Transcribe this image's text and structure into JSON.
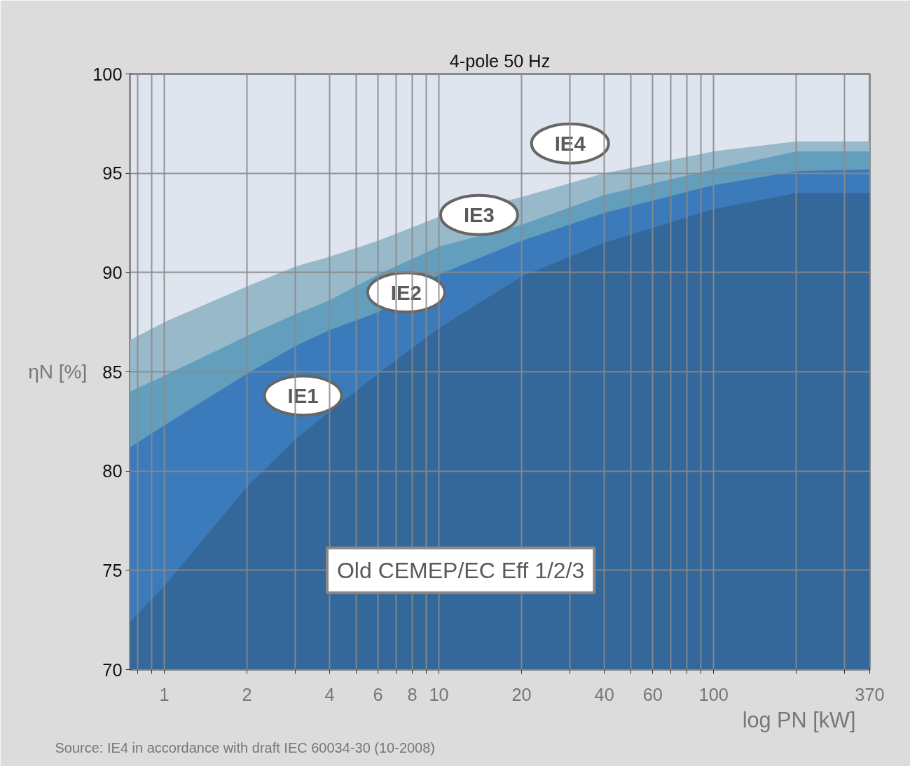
{
  "chart_data": {
    "type": "area",
    "title": "4-pole 50 Hz",
    "xlabel": "log PN [kW]",
    "ylabel": "ηN [%]",
    "x": [
      0.75,
      1,
      2,
      3,
      4,
      6,
      10,
      20,
      40,
      100,
      200,
      370
    ],
    "series": [
      {
        "name": "IE1",
        "color": "#34679a",
        "values": [
          72.4,
          74.2,
          79.2,
          81.6,
          83.0,
          84.9,
          87.2,
          89.8,
          91.5,
          93.2,
          94.0,
          94.0
        ]
      },
      {
        "name": "IE2",
        "color": "#3c7bbb",
        "values": [
          81.2,
          82.3,
          84.9,
          86.3,
          87.1,
          88.0,
          89.9,
          91.6,
          93.0,
          94.4,
          95.1,
          95.2
        ]
      },
      {
        "name": "IE3",
        "color": "#639ebd",
        "values": [
          84.0,
          84.8,
          86.8,
          87.9,
          88.6,
          89.9,
          91.3,
          92.4,
          93.9,
          95.2,
          96.1,
          96.1
        ]
      },
      {
        "name": "IE4",
        "color": "#98b9ca",
        "values": [
          86.6,
          87.5,
          89.3,
          90.3,
          90.8,
          91.6,
          92.8,
          93.8,
          95.0,
          96.1,
          96.6,
          96.6
        ]
      }
    ],
    "log": "x",
    "xlim": [
      0.75,
      370
    ],
    "ylim": [
      70,
      100
    ],
    "xticks": [
      {
        "value": 0.8,
        "label": null
      },
      {
        "value": 0.9,
        "label": null
      },
      1,
      2,
      {
        "value": 3,
        "label": null
      },
      4,
      {
        "value": 5,
        "label": null
      },
      6,
      {
        "value": 7,
        "label": null
      },
      8,
      {
        "value": 9,
        "label": null
      },
      10,
      20,
      {
        "value": 30,
        "label": null
      },
      40,
      {
        "value": 50,
        "label": null
      },
      60,
      {
        "value": 70,
        "label": null
      },
      {
        "value": 80,
        "label": null
      },
      {
        "value": 90,
        "label": null
      },
      100,
      {
        "value": 200,
        "label": null
      },
      {
        "value": 300,
        "label": null
      },
      370
    ],
    "yticks": [
      70,
      75,
      80,
      85,
      90,
      95,
      100
    ],
    "grid": true,
    "legend": false,
    "annotations": [
      "Old CEMEP/EC Eff 1/2/3",
      "Source:   IE4 in accordance with draft IEC 60034-30 (10-2008)"
    ]
  }
}
